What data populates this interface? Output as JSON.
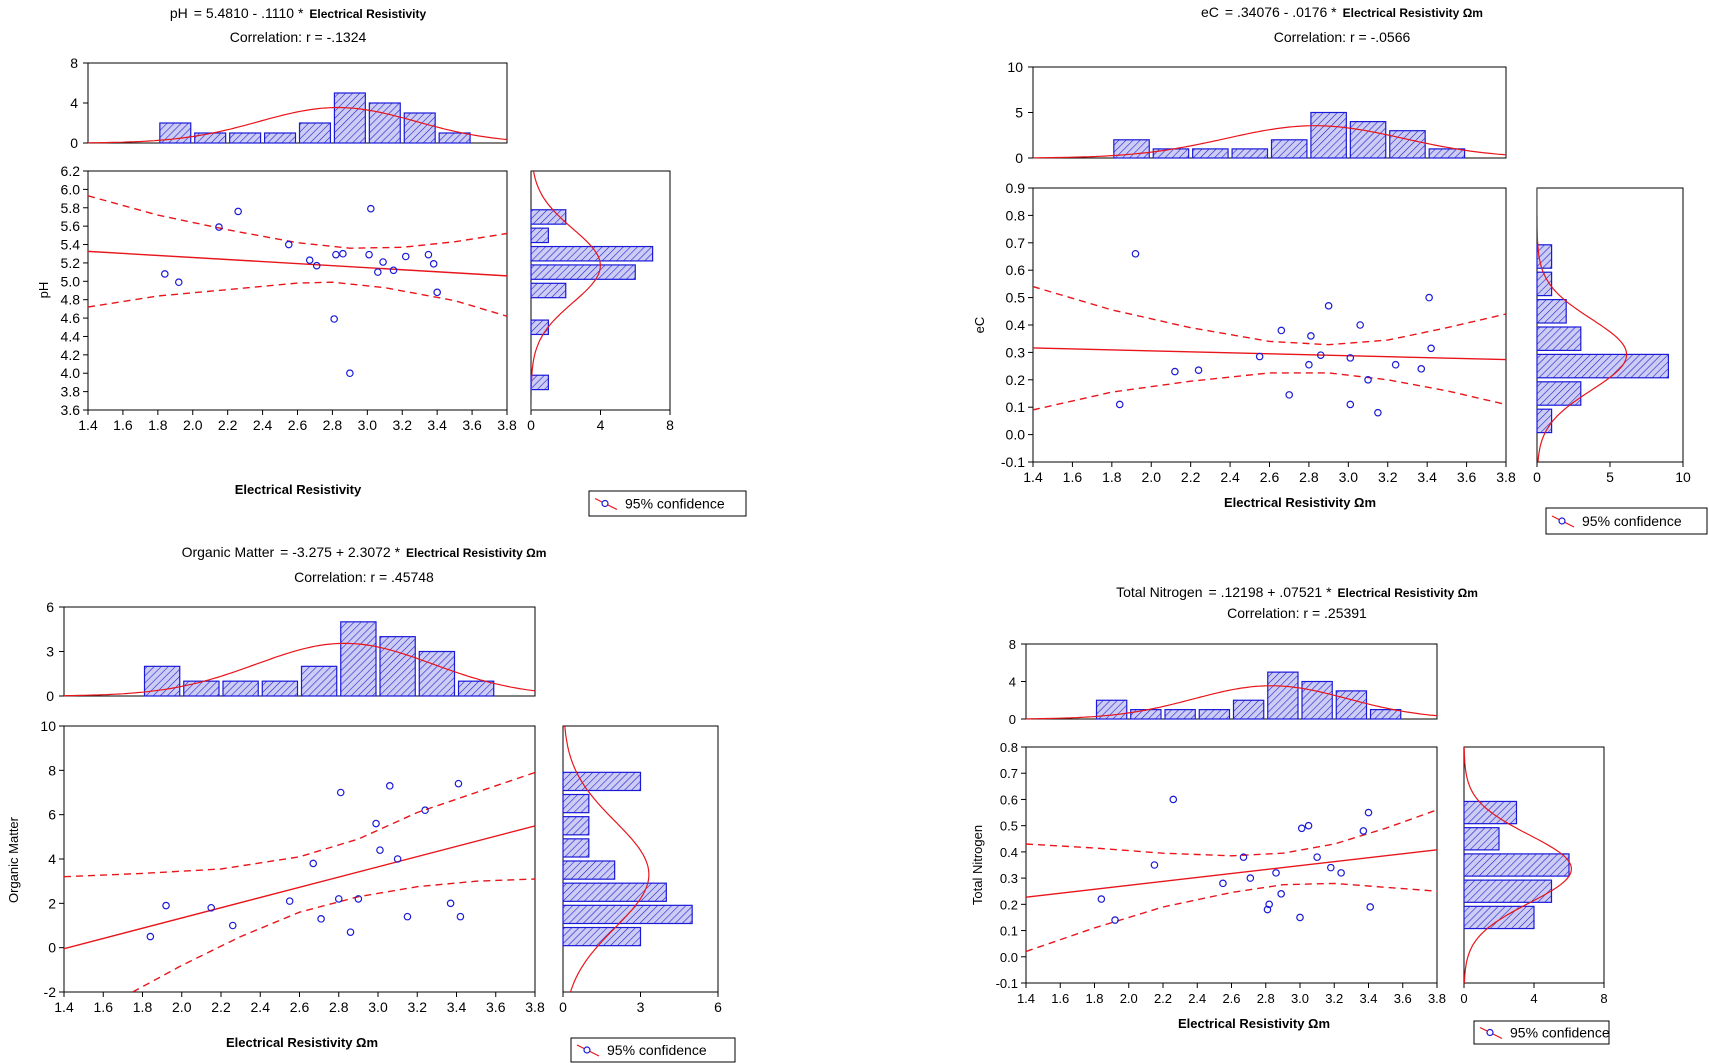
{
  "colors": {
    "bar_stroke": "#1a1ad8",
    "bar_fill": "#ccccf5",
    "hatch": "#2222cc",
    "fit_line": "#e8151b",
    "point": "#1a1ad8",
    "axis": "#000000"
  },
  "legend_label": "95% confidence",
  "chart_data": [
    {
      "type": "scatter",
      "eq_name": "pH",
      "eq_body": "= 5.4810 - .1110  *",
      "eq_unit": "Electrical Resistivity",
      "correlation": "Correlation: r = -.1324",
      "xlabel": "Electrical Resistivity",
      "ylabel": "pH",
      "xlim": [
        1.4,
        3.8
      ],
      "ylim": [
        3.6,
        6.2
      ],
      "x_ticks": [
        "1.4",
        "1.6",
        "1.8",
        "2.0",
        "2.2",
        "2.4",
        "2.6",
        "2.8",
        "3.0",
        "3.2",
        "3.4",
        "3.6",
        "3.8"
      ],
      "y_ticks": [
        "3.6",
        "3.8",
        "4.0",
        "4.2",
        "4.4",
        "4.6",
        "4.8",
        "5.0",
        "5.2",
        "5.4",
        "5.6",
        "5.8",
        "6.0",
        "6.2"
      ],
      "points": [
        [
          1.84,
          5.08
        ],
        [
          1.92,
          4.99
        ],
        [
          2.15,
          5.59
        ],
        [
          2.26,
          5.76
        ],
        [
          2.55,
          5.4
        ],
        [
          2.67,
          5.23
        ],
        [
          2.71,
          5.17
        ],
        [
          2.82,
          5.29
        ],
        [
          2.86,
          5.3
        ],
        [
          2.81,
          4.59
        ],
        [
          2.9,
          4.0
        ],
        [
          3.01,
          5.29
        ],
        [
          3.02,
          5.79
        ],
        [
          3.06,
          5.1
        ],
        [
          3.09,
          5.21
        ],
        [
          3.15,
          5.12
        ],
        [
          3.22,
          5.27
        ],
        [
          3.35,
          5.29
        ],
        [
          3.38,
          5.19
        ],
        [
          3.4,
          4.88
        ]
      ],
      "fit": {
        "intercept": 5.481,
        "slope": -0.111
      },
      "band_upper": [
        [
          1.4,
          5.93
        ],
        [
          1.8,
          5.72
        ],
        [
          2.2,
          5.56
        ],
        [
          2.6,
          5.42
        ],
        [
          2.9,
          5.36
        ],
        [
          3.2,
          5.37
        ],
        [
          3.5,
          5.43
        ],
        [
          3.8,
          5.52
        ]
      ],
      "band_lower": [
        [
          1.4,
          4.72
        ],
        [
          1.8,
          4.84
        ],
        [
          2.2,
          4.91
        ],
        [
          2.6,
          4.98
        ],
        [
          2.8,
          4.99
        ],
        [
          3.1,
          4.93
        ],
        [
          3.5,
          4.79
        ],
        [
          3.8,
          4.62
        ]
      ],
      "top_hist": {
        "ylim": [
          0,
          8
        ],
        "y_ticks": [
          "0",
          "4",
          "8"
        ],
        "bins": [
          [
            1.8,
            2.0,
            2
          ],
          [
            2.0,
            2.2,
            1
          ],
          [
            2.2,
            2.4,
            1
          ],
          [
            2.4,
            2.6,
            1
          ],
          [
            2.6,
            2.8,
            2
          ],
          [
            2.8,
            3.0,
            5
          ],
          [
            3.0,
            3.2,
            4
          ],
          [
            3.2,
            3.4,
            3
          ],
          [
            3.4,
            3.6,
            1
          ]
        ],
        "mean": 2.83,
        "sd": 0.45,
        "n": 20,
        "binw": 0.2
      },
      "side_hist": {
        "xlim": [
          0,
          8
        ],
        "x_ticks": [
          "0",
          "4",
          "8"
        ],
        "bins": [
          [
            5.6,
            5.8,
            2
          ],
          [
            5.4,
            5.6,
            1
          ],
          [
            5.2,
            5.4,
            7
          ],
          [
            5.0,
            5.2,
            6
          ],
          [
            4.8,
            5.0,
            2
          ],
          [
            4.4,
            4.6,
            1
          ],
          [
            3.8,
            4.0,
            1
          ]
        ],
        "mean": 5.17,
        "sd": 0.4,
        "n": 20,
        "binw": 0.2
      }
    },
    {
      "type": "scatter",
      "eq_name": "eC",
      "eq_body": "= .34076 - .0176  *",
      "eq_unit": "Electrical Resistivity Ωm",
      "correlation": "Correlation: r = -.0566",
      "xlabel": "Electrical Resistivity Ωm",
      "ylabel": "eC",
      "xlim": [
        1.4,
        3.8
      ],
      "ylim": [
        -0.1,
        0.9
      ],
      "x_ticks": [
        "1.4",
        "1.6",
        "1.8",
        "2.0",
        "2.2",
        "2.4",
        "2.6",
        "2.8",
        "3.0",
        "3.2",
        "3.4",
        "3.6",
        "3.8"
      ],
      "y_ticks": [
        "-0.1",
        "0.0",
        "0.1",
        "0.2",
        "0.3",
        "0.4",
        "0.5",
        "0.6",
        "0.7",
        "0.8",
        "0.9"
      ],
      "points": [
        [
          1.84,
          0.11
        ],
        [
          1.92,
          0.66
        ],
        [
          2.12,
          0.23
        ],
        [
          2.24,
          0.235
        ],
        [
          2.55,
          0.285
        ],
        [
          2.66,
          0.38
        ],
        [
          2.7,
          0.145
        ],
        [
          2.81,
          0.36
        ],
        [
          2.8,
          0.255
        ],
        [
          2.86,
          0.29
        ],
        [
          2.9,
          0.47
        ],
        [
          3.01,
          0.28
        ],
        [
          3.01,
          0.11
        ],
        [
          3.06,
          0.4
        ],
        [
          3.1,
          0.2
        ],
        [
          3.15,
          0.08
        ],
        [
          3.24,
          0.255
        ],
        [
          3.37,
          0.24
        ],
        [
          3.41,
          0.5
        ],
        [
          3.42,
          0.315
        ]
      ],
      "fit": {
        "intercept": 0.34076,
        "slope": -0.0176
      },
      "band_upper": [
        [
          1.4,
          0.54
        ],
        [
          1.8,
          0.455
        ],
        [
          2.2,
          0.39
        ],
        [
          2.6,
          0.34
        ],
        [
          2.9,
          0.328
        ],
        [
          3.2,
          0.345
        ],
        [
          3.5,
          0.39
        ],
        [
          3.8,
          0.44
        ]
      ],
      "band_lower": [
        [
          1.4,
          0.09
        ],
        [
          1.8,
          0.155
        ],
        [
          2.2,
          0.195
        ],
        [
          2.6,
          0.225
        ],
        [
          2.9,
          0.225
        ],
        [
          3.2,
          0.2
        ],
        [
          3.5,
          0.16
        ],
        [
          3.8,
          0.11
        ]
      ],
      "top_hist": {
        "ylim": [
          0,
          10
        ],
        "y_ticks": [
          "0",
          "5",
          "10"
        ],
        "bins": [
          [
            1.8,
            2.0,
            2
          ],
          [
            2.0,
            2.2,
            1
          ],
          [
            2.2,
            2.4,
            1
          ],
          [
            2.4,
            2.6,
            1
          ],
          [
            2.6,
            2.8,
            2
          ],
          [
            2.8,
            3.0,
            5
          ],
          [
            3.0,
            3.2,
            4
          ],
          [
            3.2,
            3.4,
            3
          ],
          [
            3.4,
            3.6,
            1
          ]
        ],
        "mean": 2.83,
        "sd": 0.45,
        "n": 20,
        "binw": 0.2
      },
      "side_hist": {
        "xlim": [
          0,
          10
        ],
        "x_ticks": [
          "0",
          "5",
          "10"
        ],
        "bins": [
          [
            0.6,
            0.7,
            1
          ],
          [
            0.5,
            0.6,
            1
          ],
          [
            0.4,
            0.5,
            2
          ],
          [
            0.3,
            0.4,
            3
          ],
          [
            0.2,
            0.3,
            9
          ],
          [
            0.1,
            0.2,
            3
          ],
          [
            0.0,
            0.1,
            1
          ]
        ],
        "mean": 0.292,
        "sd": 0.13,
        "n": 20,
        "binw": 0.1
      }
    },
    {
      "type": "scatter",
      "eq_name": "Organic Matter",
      "eq_body": "= -3.275 + 2.3072  *",
      "eq_unit": "Electrical Resistivity Ωm",
      "correlation": "Correlation: r = .45748",
      "xlabel": "Electrical Resistivity Ωm",
      "ylabel": "Organic Matter",
      "xlim": [
        1.4,
        3.8
      ],
      "ylim": [
        -2,
        10
      ],
      "x_ticks": [
        "1.4",
        "1.6",
        "1.8",
        "2.0",
        "2.2",
        "2.4",
        "2.6",
        "2.8",
        "3.0",
        "3.2",
        "3.4",
        "3.6",
        "3.8"
      ],
      "y_ticks": [
        "-2",
        "0",
        "2",
        "4",
        "6",
        "8",
        "10"
      ],
      "points": [
        [
          1.84,
          0.5
        ],
        [
          1.92,
          1.9
        ],
        [
          2.15,
          1.8
        ],
        [
          2.26,
          1.0
        ],
        [
          2.55,
          2.1
        ],
        [
          2.67,
          3.8
        ],
        [
          2.71,
          1.3
        ],
        [
          2.81,
          7.0
        ],
        [
          2.8,
          2.2
        ],
        [
          2.86,
          0.7
        ],
        [
          2.9,
          2.2
        ],
        [
          2.99,
          5.6
        ],
        [
          3.01,
          4.4
        ],
        [
          3.06,
          7.3
        ],
        [
          3.1,
          4.0
        ],
        [
          3.15,
          1.4
        ],
        [
          3.24,
          6.2
        ],
        [
          3.37,
          2.0
        ],
        [
          3.41,
          7.4
        ],
        [
          3.42,
          1.4
        ]
      ],
      "fit": {
        "intercept": -3.275,
        "slope": 2.3072
      },
      "band_upper": [
        [
          1.4,
          3.2
        ],
        [
          1.8,
          3.35
        ],
        [
          2.2,
          3.55
        ],
        [
          2.6,
          4.1
        ],
        [
          2.9,
          4.9
        ],
        [
          3.2,
          6.1
        ],
        [
          3.5,
          7.0
        ],
        [
          3.8,
          7.9
        ]
      ],
      "band_lower": [
        [
          1.75,
          -2.0
        ],
        [
          2.0,
          -0.8
        ],
        [
          2.3,
          0.5
        ],
        [
          2.6,
          1.6
        ],
        [
          2.9,
          2.3
        ],
        [
          3.2,
          2.75
        ],
        [
          3.5,
          3.0
        ],
        [
          3.8,
          3.1
        ]
      ],
      "top_hist": {
        "ylim": [
          0,
          6
        ],
        "y_ticks": [
          "0",
          "3",
          "6"
        ],
        "bins": [
          [
            1.8,
            2.0,
            2
          ],
          [
            2.0,
            2.2,
            1
          ],
          [
            2.2,
            2.4,
            1
          ],
          [
            2.4,
            2.6,
            1
          ],
          [
            2.6,
            2.8,
            2
          ],
          [
            2.8,
            3.0,
            5
          ],
          [
            3.0,
            3.2,
            4
          ],
          [
            3.2,
            3.4,
            3
          ],
          [
            3.4,
            3.6,
            1
          ]
        ],
        "mean": 2.83,
        "sd": 0.45,
        "n": 20,
        "binw": 0.2
      },
      "side_hist": {
        "xlim": [
          0,
          6
        ],
        "x_ticks": [
          "0",
          "3",
          "6"
        ],
        "bins": [
          [
            7.0,
            8.0,
            3
          ],
          [
            6.0,
            7.0,
            1
          ],
          [
            5.0,
            6.0,
            1
          ],
          [
            4.0,
            5.0,
            1
          ],
          [
            3.0,
            4.0,
            2
          ],
          [
            2.0,
            3.0,
            4
          ],
          [
            1.0,
            2.0,
            5
          ],
          [
            0.0,
            1.0,
            3
          ]
        ],
        "mean": 3.3,
        "sd": 2.4,
        "n": 20,
        "binw": 1.0
      }
    },
    {
      "type": "scatter",
      "eq_name": "Total Nitrogen",
      "eq_body": "= .12198 + .07521 *",
      "eq_unit": "Electrical Resistivity Ωm",
      "correlation": "Correlation: r = .25391",
      "xlabel": "Electrical Resistivity Ωm",
      "ylabel": "Total Nitrogen",
      "xlim": [
        1.4,
        3.8
      ],
      "ylim": [
        -0.1,
        0.8
      ],
      "x_ticks": [
        "1.4",
        "1.6",
        "1.8",
        "2.0",
        "2.2",
        "2.4",
        "2.6",
        "2.8",
        "3.0",
        "3.2",
        "3.4",
        "3.6",
        "3.8"
      ],
      "y_ticks": [
        "-0.1",
        "0.0",
        "0.1",
        "0.2",
        "0.3",
        "0.4",
        "0.5",
        "0.6",
        "0.7",
        "0.8"
      ],
      "points": [
        [
          1.84,
          0.22
        ],
        [
          1.92,
          0.14
        ],
        [
          2.15,
          0.35
        ],
        [
          2.26,
          0.6
        ],
        [
          2.55,
          0.28
        ],
        [
          2.67,
          0.38
        ],
        [
          2.71,
          0.3
        ],
        [
          2.81,
          0.18
        ],
        [
          2.82,
          0.2
        ],
        [
          2.86,
          0.32
        ],
        [
          2.89,
          0.24
        ],
        [
          3.0,
          0.15
        ],
        [
          3.01,
          0.49
        ],
        [
          3.05,
          0.5
        ],
        [
          3.1,
          0.38
        ],
        [
          3.18,
          0.34
        ],
        [
          3.24,
          0.32
        ],
        [
          3.37,
          0.48
        ],
        [
          3.4,
          0.55
        ],
        [
          3.41,
          0.19
        ]
      ],
      "fit": {
        "intercept": 0.12198,
        "slope": 0.07521
      },
      "band_upper": [
        [
          1.4,
          0.43
        ],
        [
          1.8,
          0.415
        ],
        [
          2.2,
          0.395
        ],
        [
          2.6,
          0.385
        ],
        [
          2.9,
          0.395
        ],
        [
          3.2,
          0.43
        ],
        [
          3.5,
          0.49
        ],
        [
          3.8,
          0.56
        ]
      ],
      "band_lower": [
        [
          1.4,
          0.02
        ],
        [
          1.8,
          0.11
        ],
        [
          2.2,
          0.19
        ],
        [
          2.6,
          0.245
        ],
        [
          2.9,
          0.275
        ],
        [
          3.2,
          0.28
        ],
        [
          3.5,
          0.265
        ],
        [
          3.8,
          0.25
        ]
      ],
      "top_hist": {
        "ylim": [
          0,
          8
        ],
        "y_ticks": [
          "0",
          "4",
          "8"
        ],
        "bins": [
          [
            1.8,
            2.0,
            2
          ],
          [
            2.0,
            2.2,
            1
          ],
          [
            2.2,
            2.4,
            1
          ],
          [
            2.4,
            2.6,
            1
          ],
          [
            2.6,
            2.8,
            2
          ],
          [
            2.8,
            3.0,
            5
          ],
          [
            3.0,
            3.2,
            4
          ],
          [
            3.2,
            3.4,
            3
          ],
          [
            3.4,
            3.6,
            1
          ]
        ],
        "mean": 2.83,
        "sd": 0.45,
        "n": 20,
        "binw": 0.2
      },
      "side_hist": {
        "xlim": [
          0,
          8
        ],
        "x_ticks": [
          "0",
          "4",
          "8"
        ],
        "bins": [
          [
            0.5,
            0.6,
            3
          ],
          [
            0.4,
            0.5,
            2
          ],
          [
            0.3,
            0.4,
            6
          ],
          [
            0.2,
            0.3,
            5
          ],
          [
            0.1,
            0.2,
            4
          ]
        ],
        "mean": 0.335,
        "sd": 0.13,
        "n": 20,
        "binw": 0.1
      }
    }
  ]
}
